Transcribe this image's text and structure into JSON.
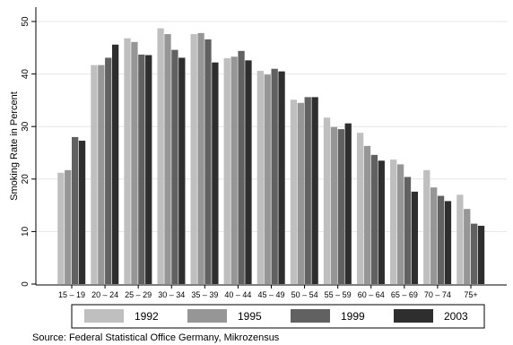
{
  "chart_data": {
    "type": "bar",
    "title": "",
    "xlabel": "",
    "ylabel": "Smoking Rate in Percent",
    "ylim": [
      0,
      50
    ],
    "yticks": [
      0,
      10,
      20,
      30,
      40,
      50
    ],
    "grid": "horizontal",
    "legend_position": "bottom",
    "categories": [
      "15 – 19",
      "20 – 24",
      "25 – 29",
      "30 – 34",
      "35 – 39",
      "40 – 44",
      "45 – 49",
      "50 – 54",
      "55 – 59",
      "60 – 64",
      "65 – 69",
      "70 – 74",
      "75+"
    ],
    "series": [
      {
        "name": "1992",
        "color": "#bfbfbf",
        "values": [
          21.2,
          41.7,
          46.8,
          48.7,
          47.6,
          43.0,
          40.6,
          35.1,
          31.7,
          28.8,
          23.7,
          21.7,
          17.0
        ]
      },
      {
        "name": "1995",
        "color": "#969696",
        "values": [
          21.7,
          41.7,
          46.1,
          47.6,
          47.8,
          43.3,
          39.9,
          34.5,
          29.9,
          26.3,
          22.8,
          18.4,
          14.3
        ]
      },
      {
        "name": "1999",
        "color": "#616161",
        "values": [
          28.0,
          43.1,
          43.7,
          44.6,
          46.6,
          44.4,
          41.0,
          35.6,
          29.5,
          24.6,
          20.4,
          16.8,
          11.5
        ]
      },
      {
        "name": "2003",
        "color": "#2e2e2e",
        "values": [
          27.3,
          45.6,
          43.6,
          43.1,
          42.2,
          42.6,
          40.5,
          35.6,
          30.6,
          23.5,
          17.6,
          15.8,
          11.1
        ]
      }
    ]
  },
  "source_note": "Source: Federal Statistical Office Germany, Mikrozensus"
}
